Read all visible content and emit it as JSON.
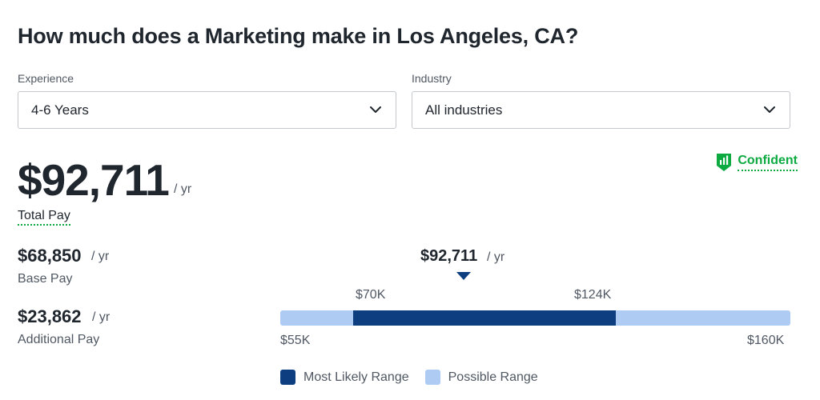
{
  "title": "How much does a Marketing make in Los Angeles, CA?",
  "filters": {
    "experience": {
      "label": "Experience",
      "value": "4-6 Years",
      "icon": "chevron-down-icon"
    },
    "industry": {
      "label": "Industry",
      "value": "All industries",
      "icon": "chevron-down-icon"
    }
  },
  "total": {
    "amount": "$92,711",
    "unit": "/ yr",
    "label": "Total Pay"
  },
  "confidence": {
    "label": "Confident",
    "icon": "bar-chart-shield-icon",
    "color": "#0caa41"
  },
  "base": {
    "amount": "$68,850",
    "unit": "/ yr",
    "label": "Base Pay"
  },
  "additional": {
    "amount": "$23,862",
    "unit": "/ yr",
    "label": "Additional Pay"
  },
  "range": {
    "marker_value": "$92,711",
    "marker_unit": "/ yr",
    "likely_low_label": "$70K",
    "likely_high_label": "$124K",
    "possible_low_label": "$55K",
    "possible_high_label": "$160K",
    "possible_min": 55,
    "possible_max": 160,
    "likely_min": 70,
    "likely_max": 124,
    "colors": {
      "likely": "#0d3f80",
      "possible": "#aecbf4"
    }
  },
  "legend": {
    "likely": "Most Likely Range",
    "possible": "Possible Range"
  }
}
